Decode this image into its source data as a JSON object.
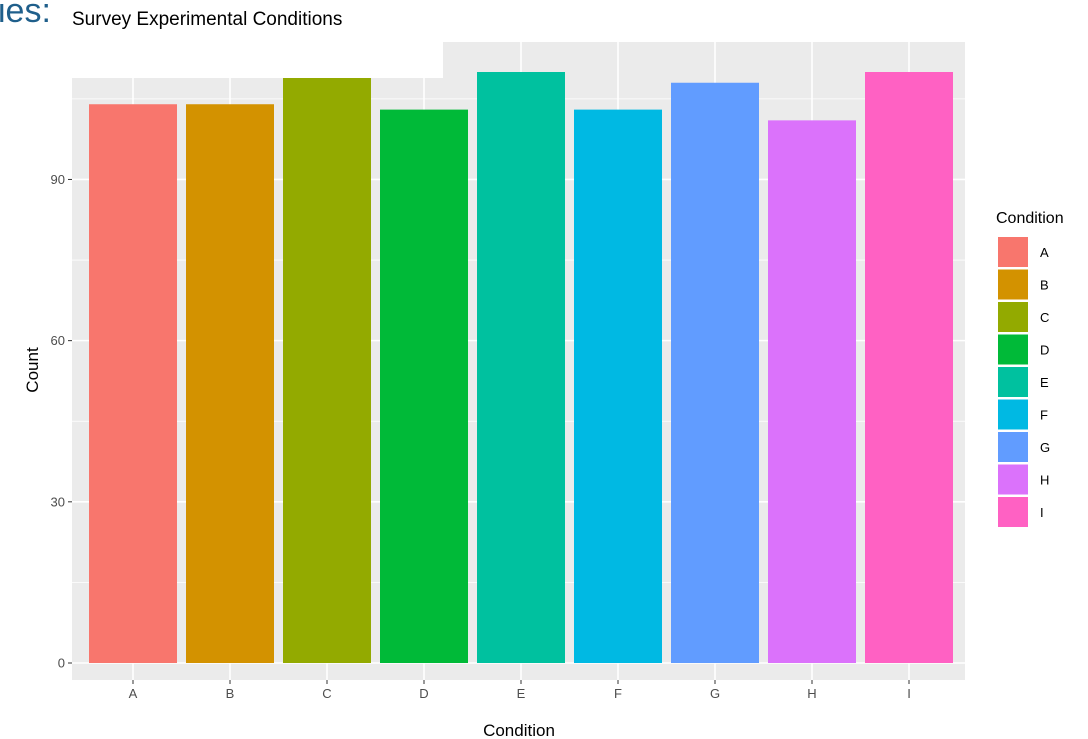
{
  "header_fragment": "ies:",
  "chart_data": {
    "type": "bar",
    "title": "Survey Experimental Conditions",
    "xlabel": "Condition",
    "ylabel": "Count",
    "categories": [
      "A",
      "B",
      "C",
      "D",
      "E",
      "F",
      "G",
      "H",
      "I"
    ],
    "values": [
      104,
      104,
      109,
      103,
      110,
      103,
      108,
      101,
      110
    ],
    "colors": [
      "#F8766D",
      "#D39200",
      "#93AA00",
      "#00BA38",
      "#00C19F",
      "#00B9E3",
      "#619CFF",
      "#DB72FB",
      "#FF61C3"
    ],
    "ylim": [
      0,
      115
    ],
    "yticks": [
      0,
      30,
      60,
      90
    ],
    "ytick_labels": [
      "0",
      "30",
      "60",
      "90"
    ],
    "grid": true,
    "panel_background": "#EBEBEB",
    "legend": {
      "title": "Condition",
      "position": "right",
      "entries": [
        "A",
        "B",
        "C",
        "D",
        "E",
        "F",
        "G",
        "H",
        "I"
      ]
    }
  }
}
